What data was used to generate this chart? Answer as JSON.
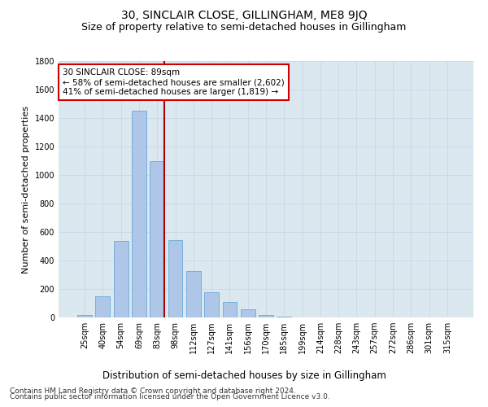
{
  "title": "30, SINCLAIR CLOSE, GILLINGHAM, ME8 9JQ",
  "subtitle": "Size of property relative to semi-detached houses in Gillingham",
  "xlabel": "Distribution of semi-detached houses by size in Gillingham",
  "ylabel": "Number of semi-detached properties",
  "categories": [
    "25sqm",
    "40sqm",
    "54sqm",
    "69sqm",
    "83sqm",
    "98sqm",
    "112sqm",
    "127sqm",
    "141sqm",
    "156sqm",
    "170sqm",
    "185sqm",
    "199sqm",
    "214sqm",
    "228sqm",
    "243sqm",
    "257sqm",
    "272sqm",
    "286sqm",
    "301sqm",
    "315sqm"
  ],
  "values": [
    15,
    150,
    540,
    1450,
    1100,
    545,
    325,
    175,
    110,
    57,
    18,
    4,
    0,
    0,
    0,
    0,
    0,
    0,
    0,
    0,
    0
  ],
  "bar_color": "#aec6e8",
  "bar_edgecolor": "#5a9fd4",
  "vline_color": "#aa0000",
  "annotation_text": "30 SINCLAIR CLOSE: 89sqm\n← 58% of semi-detached houses are smaller (2,602)\n41% of semi-detached houses are larger (1,819) →",
  "annotation_box_color": "#ffffff",
  "annotation_box_edgecolor": "#cc0000",
  "ylim": [
    0,
    1800
  ],
  "yticks": [
    0,
    200,
    400,
    600,
    800,
    1000,
    1200,
    1400,
    1600,
    1800
  ],
  "grid_color": "#c8d8e8",
  "background_color": "#dce8f0",
  "footer_line1": "Contains HM Land Registry data © Crown copyright and database right 2024.",
  "footer_line2": "Contains public sector information licensed under the Open Government Licence v3.0.",
  "title_fontsize": 10,
  "subtitle_fontsize": 9,
  "xlabel_fontsize": 8.5,
  "ylabel_fontsize": 8,
  "tick_fontsize": 7,
  "footer_fontsize": 6.5,
  "annotation_fontsize": 7.5
}
